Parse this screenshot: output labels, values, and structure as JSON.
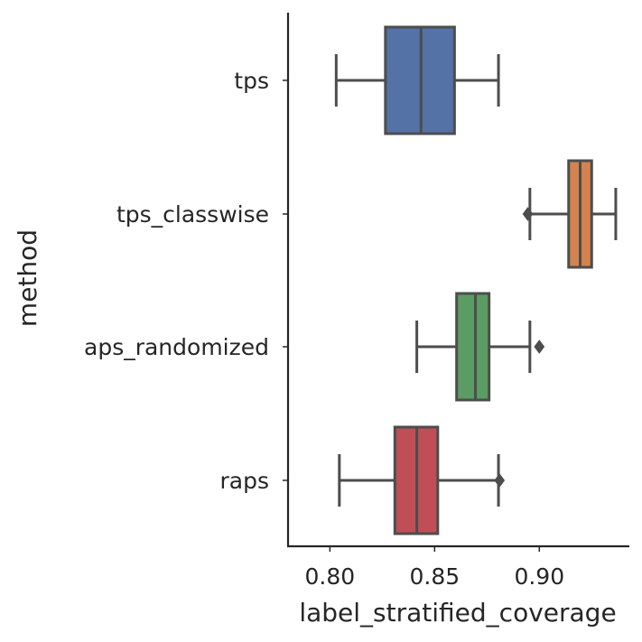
{
  "chart_data": {
    "type": "box",
    "orientation": "horizontal",
    "xlabel": "label_stratified_coverage",
    "ylabel": "method",
    "xlim": [
      0.78,
      0.943
    ],
    "xticks": [
      0.8,
      0.85,
      0.9
    ],
    "xtick_labels": [
      "0.80",
      "0.85",
      "0.90"
    ],
    "grid": false,
    "categories": [
      "tps",
      "tps_classwise",
      "aps_randomized",
      "raps"
    ],
    "boxes": [
      {
        "name": "tps",
        "color": "#5572a6",
        "whislo": 0.803,
        "q1": 0.8265,
        "median": 0.8435,
        "q3": 0.8595,
        "whishi": 0.8805,
        "fliers": []
      },
      {
        "name": "tps_classwise",
        "color": "#d4834f",
        "whislo": 0.8955,
        "q1": 0.914,
        "median": 0.9195,
        "q3": 0.925,
        "whishi": 0.9365,
        "fliers": [
          0.8945
        ]
      },
      {
        "name": "aps_randomized",
        "color": "#5a9c63",
        "whislo": 0.8415,
        "q1": 0.8605,
        "median": 0.8695,
        "q3": 0.876,
        "whishi": 0.8955,
        "fliers": [
          0.9
        ]
      },
      {
        "name": "raps",
        "color": "#bf4e57",
        "whislo": 0.8045,
        "q1": 0.831,
        "median": 0.8415,
        "q3": 0.8515,
        "whishi": 0.8805,
        "fliers": [
          0.881
        ]
      }
    ]
  }
}
